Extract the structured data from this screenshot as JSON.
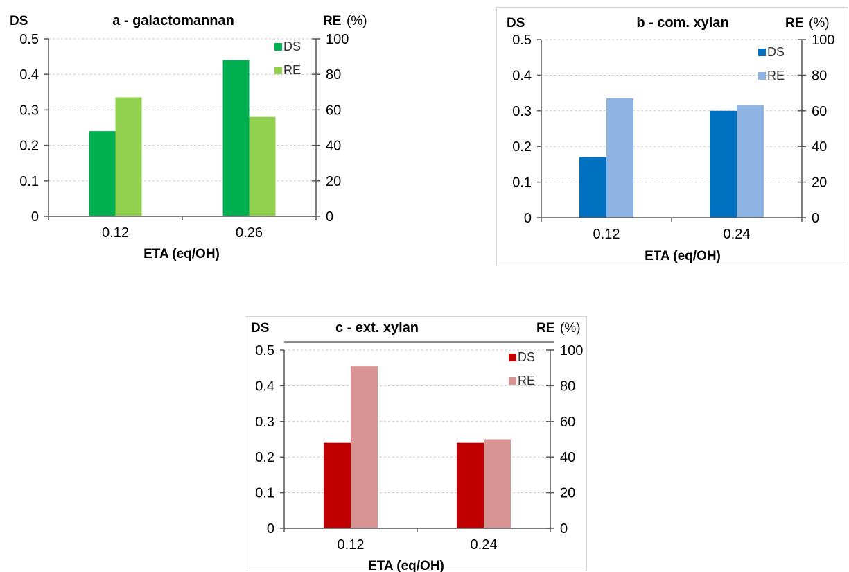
{
  "chart_data": [
    {
      "type": "bar",
      "title": "a - galactomannan",
      "left_axis_label": "DS",
      "right_axis_label": "RE",
      "right_axis_unit": "(%)",
      "xlabel": "ETA (eq/OH)",
      "categories": [
        "0.12",
        "0.26"
      ],
      "series": [
        {
          "name": "DS",
          "axis": "left",
          "values": [
            0.24,
            0.44
          ],
          "color": "#00b050"
        },
        {
          "name": "RE",
          "axis": "right",
          "values": [
            67,
            56
          ],
          "color": "#92d050"
        }
      ],
      "left_ylim": [
        0,
        0.5
      ],
      "left_ticks": [
        "0",
        "0.1",
        "0.2",
        "0.3",
        "0.4",
        "0.5"
      ],
      "right_ylim": [
        0,
        100
      ],
      "right_ticks": [
        "0",
        "20",
        "40",
        "60",
        "80",
        "100"
      ],
      "grid": true,
      "legend": "top-right"
    },
    {
      "type": "bar",
      "title": "b - com. xylan",
      "left_axis_label": "DS",
      "right_axis_label": "RE",
      "right_axis_unit": "(%)",
      "xlabel": "ETA (eq/OH)",
      "categories": [
        "0.12",
        "0.24"
      ],
      "series": [
        {
          "name": "DS",
          "axis": "left",
          "values": [
            0.17,
            0.3
          ],
          "color": "#0070c0"
        },
        {
          "name": "RE",
          "axis": "right",
          "values": [
            67,
            63
          ],
          "color": "#8db4e2"
        }
      ],
      "left_ylim": [
        0,
        0.5
      ],
      "left_ticks": [
        "0",
        "0.1",
        "0.2",
        "0.3",
        "0.4",
        "0.5"
      ],
      "right_ylim": [
        0,
        100
      ],
      "right_ticks": [
        "0",
        "20",
        "40",
        "60",
        "80",
        "100"
      ],
      "grid": true,
      "legend": "top-right"
    },
    {
      "type": "bar",
      "title": "c - ext. xylan",
      "left_axis_label": "DS",
      "right_axis_label": "RE",
      "right_axis_unit": "(%)",
      "xlabel": "ETA (eq/OH)",
      "categories": [
        "0.12",
        "0.24"
      ],
      "series": [
        {
          "name": "DS",
          "axis": "left",
          "values": [
            0.24,
            0.24
          ],
          "color": "#c00000"
        },
        {
          "name": "RE",
          "axis": "right",
          "values": [
            91,
            50
          ],
          "color": "#d99594"
        }
      ],
      "left_ylim": [
        0,
        0.5
      ],
      "left_ticks": [
        "0",
        "0.1",
        "0.2",
        "0.3",
        "0.4",
        "0.5"
      ],
      "right_ylim": [
        0,
        100
      ],
      "right_ticks": [
        "0",
        "20",
        "40",
        "60",
        "80",
        "100"
      ],
      "grid": true,
      "legend": "top-right"
    }
  ]
}
